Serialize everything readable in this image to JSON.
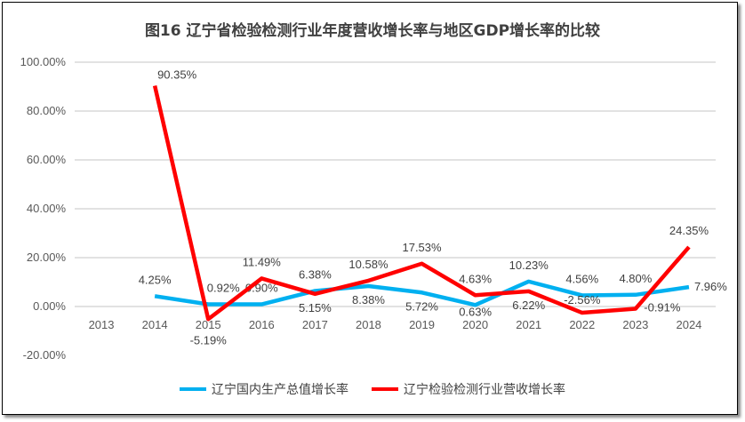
{
  "chart_data": {
    "type": "line",
    "title": "图16  辽宁省检验检测行业年度营收增长率与地区GDP增长率的比较",
    "categories": [
      "2013",
      "2014",
      "2015",
      "2016",
      "2017",
      "2018",
      "2019",
      "2020",
      "2021",
      "2022",
      "2023",
      "2024"
    ],
    "ylim": [
      -20,
      100
    ],
    "yticks": [
      "-20.00%",
      "0.00%",
      "20.00%",
      "40.00%",
      "60.00%",
      "80.00%",
      "100.00%"
    ],
    "grid": true,
    "legend_position": "bottom",
    "series": [
      {
        "name": "辽宁国内生产总值增长率",
        "color": "#00B0F0",
        "values": [
          null,
          4.25,
          0.92,
          0.9,
          6.38,
          8.38,
          5.72,
          0.63,
          10.23,
          4.56,
          4.8,
          7.96
        ],
        "labels": [
          "",
          "4.25%",
          "0.92%",
          "0.90%",
          "6.38%",
          "8.38%",
          "5.72%",
          "0.63%",
          "10.23%",
          "4.56%",
          "4.80%",
          "7.96%"
        ]
      },
      {
        "name": "辽宁检验检测行业营收增长率",
        "color": "#FF0000",
        "values": [
          null,
          90.35,
          -5.19,
          11.49,
          5.15,
          10.58,
          17.53,
          4.63,
          6.22,
          -2.56,
          -0.91,
          24.35
        ],
        "labels": [
          "",
          "90.35%",
          "-5.19%",
          "11.49%",
          "5.15%",
          "10.58%",
          "17.53%",
          "4.63%",
          "6.22%",
          "-2.56%",
          "-0.91%",
          "24.35%"
        ]
      }
    ]
  }
}
